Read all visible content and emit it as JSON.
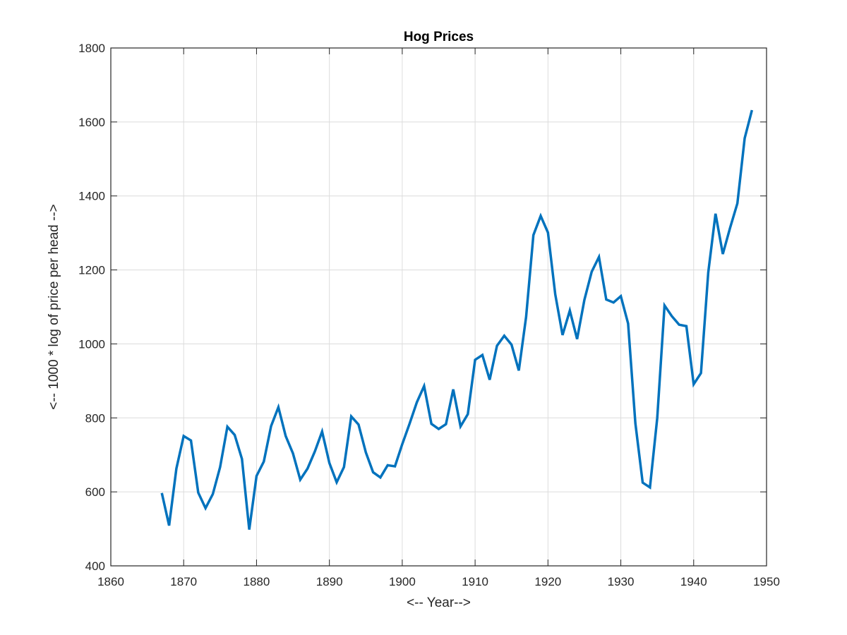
{
  "chart_data": {
    "type": "line",
    "title": "Hog Prices",
    "xlabel": "<-- Year-->",
    "ylabel": "<-- 1000 * log of price per head -->",
    "xlim": [
      1860,
      1950
    ],
    "ylim": [
      400,
      1800
    ],
    "xticks": [
      1860,
      1870,
      1880,
      1890,
      1900,
      1910,
      1920,
      1930,
      1940,
      1950
    ],
    "yticks": [
      400,
      600,
      800,
      1000,
      1200,
      1400,
      1600,
      1800
    ],
    "grid": true,
    "series": [
      {
        "color": "#0072bd",
        "x": [
          1867,
          1868,
          1869,
          1870,
          1871,
          1872,
          1873,
          1874,
          1875,
          1876,
          1877,
          1878,
          1879,
          1880,
          1881,
          1882,
          1883,
          1884,
          1885,
          1886,
          1887,
          1888,
          1889,
          1890,
          1891,
          1892,
          1893,
          1894,
          1895,
          1896,
          1897,
          1898,
          1899,
          1900,
          1901,
          1902,
          1903,
          1904,
          1905,
          1906,
          1907,
          1908,
          1909,
          1910,
          1911,
          1912,
          1913,
          1914,
          1915,
          1916,
          1917,
          1918,
          1919,
          1920,
          1921,
          1922,
          1923,
          1924,
          1925,
          1926,
          1927,
          1928,
          1929,
          1930,
          1931,
          1932,
          1933,
          1934,
          1935,
          1936,
          1937,
          1938,
          1939,
          1940,
          1941,
          1942,
          1943,
          1944,
          1945,
          1946,
          1947,
          1948
        ],
        "y": [
          597,
          509,
          663,
          751,
          739,
          598,
          556,
          594,
          667,
          776,
          754,
          689,
          498,
          643,
          682,
          778,
          829,
          751,
          704,
          633,
          663,
          709,
          763,
          678,
          626,
          667,
          804,
          782,
          707,
          653,
          639,
          672,
          669,
          729,
          784,
          842,
          886,
          784,
          770,
          783,
          877,
          777,
          810,
          957,
          970,
          903,
          995,
          1022,
          998,
          928,
          1073,
          1294,
          1346,
          1301,
          1134,
          1024,
          1090,
          1013,
          1119,
          1195,
          1235,
          1120,
          1112,
          1129,
          1055,
          785,
          625,
          612,
          800,
          1104,
          1075,
          1052,
          1048,
          891,
          921,
          1193,
          1352,
          1243,
          1314,
          1380,
          1556,
          1632
        ]
      }
    ]
  }
}
